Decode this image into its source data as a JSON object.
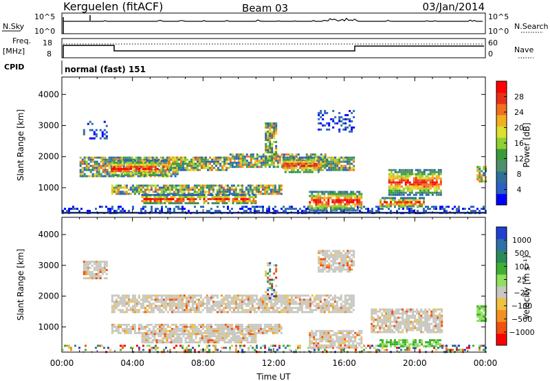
{
  "header": {
    "station": "Kerguelen (fitACF)",
    "beam": "Beam 03",
    "date": "03/Jan/2014"
  },
  "top_panels": {
    "nsky": {
      "label": "N.Sky",
      "tick_high": "10^5",
      "tick_low": "10^0"
    },
    "nsearch": {
      "label": "N.Search",
      "tick_high": "10^5",
      "tick_low": "10^0"
    },
    "freq": {
      "label_line1": "Freq.",
      "label_line2": "[MHz]",
      "tick_high": "18",
      "tick_low": "8"
    },
    "nave": {
      "label": "Nave",
      "tick_high": "60",
      "tick_low": "0"
    },
    "cpid": {
      "label": "CPID",
      "value": "normal (fast) 151"
    }
  },
  "chart_data": [
    {
      "type": "heatmap",
      "title": "",
      "ylabel": "Slant Range [km]",
      "y_ticks": [
        "1000",
        "2000",
        "3000",
        "4000"
      ],
      "ylim": [
        180,
        4560
      ],
      "xlim": [
        0,
        24
      ],
      "colorbar": {
        "label": "Power [dB]",
        "ticks": [
          "4",
          "8",
          "12",
          "16",
          "20",
          "24",
          "28"
        ],
        "colors": [
          "#0000ff",
          "#2a5fc6",
          "#2f6f9a",
          "#4f8f6a",
          "#3c9a3c",
          "#8fd030",
          "#dde030",
          "#f0b020",
          "#f07020",
          "#e83018",
          "#ff0000"
        ]
      },
      "echo_regions": [
        {
          "t0": 0.0,
          "t1": 24.0,
          "r0": 200,
          "r1": 420,
          "level": "low"
        },
        {
          "t0": 1.2,
          "t1": 2.6,
          "r0": 2600,
          "r1": 3150,
          "level": "low"
        },
        {
          "t0": 1.0,
          "t1": 6.5,
          "r0": 1400,
          "r1": 2000,
          "level": "mixed"
        },
        {
          "t0": 2.8,
          "t1": 6.0,
          "r0": 1400,
          "r1": 1900,
          "level": "high"
        },
        {
          "t0": 6.0,
          "t1": 9.5,
          "r0": 1600,
          "r1": 2000,
          "level": "mixed"
        },
        {
          "t0": 9.5,
          "t1": 15.0,
          "r0": 1700,
          "r1": 2100,
          "level": "mixed"
        },
        {
          "t0": 11.5,
          "t1": 12.2,
          "r0": 1900,
          "r1": 3100,
          "level": "mixed"
        },
        {
          "t0": 12.5,
          "t1": 14.5,
          "r0": 1500,
          "r1": 2000,
          "level": "high"
        },
        {
          "t0": 14.5,
          "t1": 16.5,
          "r0": 1600,
          "r1": 2000,
          "level": "mixed"
        },
        {
          "t0": 14.5,
          "t1": 16.5,
          "r0": 2800,
          "r1": 3500,
          "level": "low"
        },
        {
          "t0": 2.8,
          "t1": 12.5,
          "r0": 800,
          "r1": 1100,
          "level": "mixed"
        },
        {
          "t0": 4.5,
          "t1": 11.0,
          "r0": 500,
          "r1": 800,
          "level": "high"
        },
        {
          "t0": 14.0,
          "t1": 17.0,
          "r0": 300,
          "r1": 900,
          "level": "high"
        },
        {
          "t0": 18.5,
          "t1": 21.5,
          "r0": 800,
          "r1": 1600,
          "level": "high"
        },
        {
          "t0": 18.0,
          "t1": 20.5,
          "r0": 400,
          "r1": 700,
          "level": "high"
        },
        {
          "t0": 23.5,
          "t1": 24.0,
          "r0": 1200,
          "r1": 1700,
          "level": "mixed"
        }
      ]
    },
    {
      "type": "heatmap",
      "title": "",
      "xlabel": "Time UT",
      "ylabel": "Slant Range [km]",
      "x_ticks": [
        "00:00",
        "04:00",
        "08:00",
        "12:00",
        "16:00",
        "20:00",
        "00:00"
      ],
      "y_ticks": [
        "1000",
        "2000",
        "3000",
        "4000"
      ],
      "ylim": [
        180,
        4560
      ],
      "xlim": [
        0,
        24
      ],
      "colorbar": {
        "label": "Velocity [m s⁻¹]",
        "ticks": [
          "1000",
          "500",
          "100",
          "25",
          "−25",
          "−100",
          "−500",
          "−1000"
        ],
        "colors": [
          "#2040d0",
          "#3070a8",
          "#2a8a5a",
          "#40b030",
          "#90e060",
          "#c8c8c0",
          "#f0c040",
          "#f09020",
          "#f05010",
          "#ff0000"
        ]
      },
      "echo_regions": [
        {
          "t0": 0.0,
          "t1": 24.0,
          "r0": 200,
          "r1": 420,
          "level": "low"
        },
        {
          "t0": 1.2,
          "t1": 2.6,
          "r0": 2600,
          "r1": 3150,
          "level": "mixed"
        },
        {
          "t0": 2.8,
          "t1": 16.5,
          "r0": 1500,
          "r1": 2050,
          "level": "mixed"
        },
        {
          "t0": 2.8,
          "t1": 12.5,
          "r0": 800,
          "r1": 1100,
          "level": "mixed"
        },
        {
          "t0": 4.5,
          "t1": 11.0,
          "r0": 500,
          "r1": 800,
          "level": "mixed"
        },
        {
          "t0": 11.5,
          "t1": 12.2,
          "r0": 1900,
          "r1": 3100,
          "level": "low"
        },
        {
          "t0": 14.5,
          "t1": 16.5,
          "r0": 2800,
          "r1": 3500,
          "level": "mixed"
        },
        {
          "t0": 14.0,
          "t1": 17.0,
          "r0": 300,
          "r1": 900,
          "level": "mixed"
        },
        {
          "t0": 17.5,
          "t1": 21.5,
          "r0": 800,
          "r1": 1600,
          "level": "mixed"
        },
        {
          "t0": 18.0,
          "t1": 21.5,
          "r0": 380,
          "r1": 600,
          "level": "high"
        },
        {
          "t0": 23.5,
          "t1": 24.0,
          "r0": 1200,
          "r1": 1700,
          "level": "high"
        }
      ]
    }
  ]
}
